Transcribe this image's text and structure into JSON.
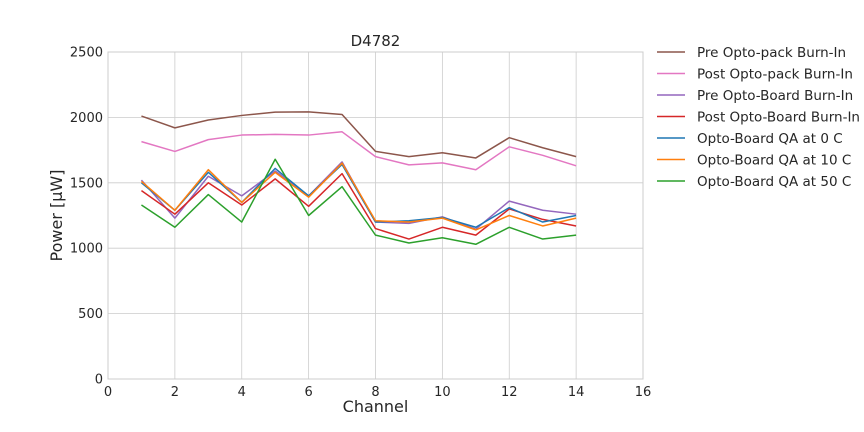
{
  "chart_data": {
    "type": "line",
    "title": "D4782",
    "xlabel": "Channel",
    "ylabel": "Power [μW]",
    "xlim": [
      0,
      16
    ],
    "ylim": [
      0,
      2500
    ],
    "xticks": [
      "0",
      "2",
      "4",
      "6",
      "8",
      "10",
      "12",
      "14",
      "16"
    ],
    "yticks": [
      "0",
      "500",
      "1000",
      "1500",
      "2000",
      "2500"
    ],
    "grid": true,
    "legend_position": "outside-right",
    "x": [
      1,
      2,
      3,
      4,
      5,
      6,
      7,
      8,
      9,
      10,
      11,
      12,
      13,
      14
    ],
    "series": [
      {
        "name": "Pre Opto-pack Burn-In",
        "color": "#8c564b",
        "values": [
          2010,
          1920,
          1980,
          2015,
          2040,
          2042,
          2022,
          1740,
          1700,
          1730,
          1690,
          1845,
          1768,
          1700
        ]
      },
      {
        "name": "Post Opto-pack Burn-In",
        "color": "#e377c2",
        "values": [
          1815,
          1740,
          1830,
          1865,
          1870,
          1865,
          1890,
          1700,
          1637,
          1652,
          1600,
          1775,
          1710,
          1630
        ]
      },
      {
        "name": "Pre Opto-Board Burn-In",
        "color": "#9467bd",
        "values": [
          1520,
          1230,
          1550,
          1400,
          1590,
          1400,
          1660,
          1200,
          1190,
          1240,
          1145,
          1360,
          1290,
          1260
        ]
      },
      {
        "name": "Post Opto-Board Burn-In",
        "color": "#d62728",
        "values": [
          1440,
          1260,
          1500,
          1330,
          1530,
          1320,
          1570,
          1150,
          1070,
          1160,
          1100,
          1300,
          1220,
          1170
        ]
      },
      {
        "name": "Opto-Board QA at 0 C",
        "color": "#1f77b4",
        "values": [
          1500,
          1290,
          1580,
          1350,
          1610,
          1400,
          1640,
          1200,
          1210,
          1235,
          1160,
          1310,
          1200,
          1250
        ]
      },
      {
        "name": "Opto-Board QA at 10 C",
        "color": "#ff7f0e",
        "values": [
          1510,
          1290,
          1600,
          1350,
          1580,
          1390,
          1650,
          1210,
          1200,
          1230,
          1140,
          1250,
          1170,
          1230
        ]
      },
      {
        "name": "Opto-Board QA at 50 C",
        "color": "#2ca02c",
        "values": [
          1330,
          1160,
          1410,
          1200,
          1680,
          1250,
          1470,
          1100,
          1040,
          1080,
          1030,
          1160,
          1070,
          1100
        ]
      }
    ]
  }
}
